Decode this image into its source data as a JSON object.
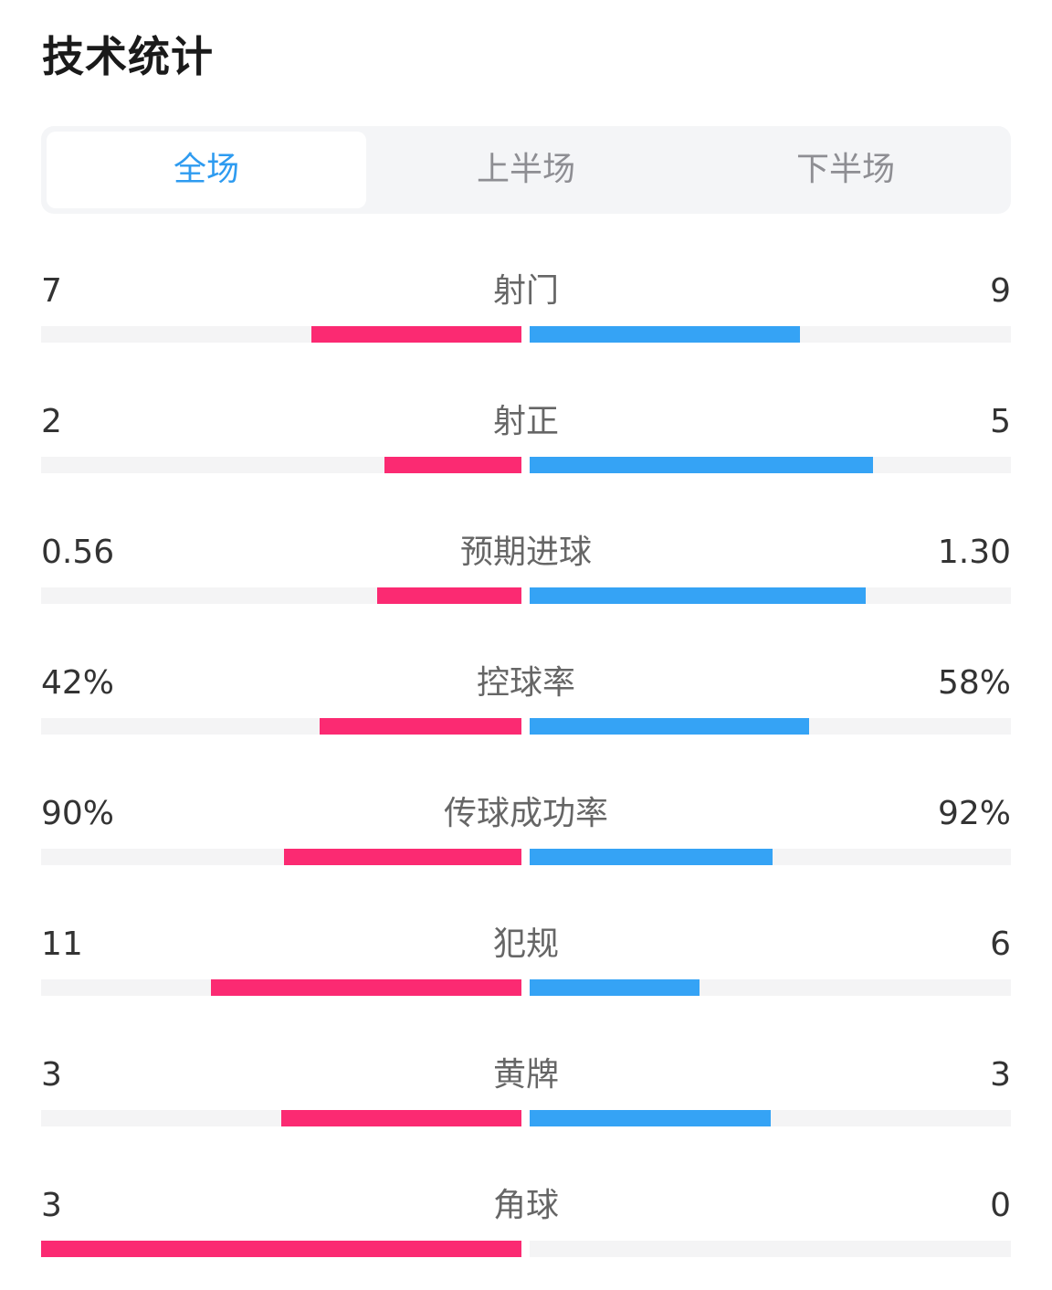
{
  "title": "技术统计",
  "tabs": [
    {
      "label": "全场",
      "active": true
    },
    {
      "label": "上半场",
      "active": false
    },
    {
      "label": "下半场",
      "active": false
    }
  ],
  "colors": {
    "home": "#fb2a72",
    "away": "#35a3f5",
    "accent": "#2e9bf0"
  },
  "stats": [
    {
      "label": "射门",
      "left": "7",
      "right": "9",
      "left_share": 0.4375,
      "right_share": 0.5625
    },
    {
      "label": "射正",
      "left": "2",
      "right": "5",
      "left_share": 0.2857,
      "right_share": 0.7143
    },
    {
      "label": "预期进球",
      "left": "0.56",
      "right": "1.30",
      "left_share": 0.3011,
      "right_share": 0.6989
    },
    {
      "label": "控球率",
      "left": "42%",
      "right": "58%",
      "left_share": 0.42,
      "right_share": 0.58
    },
    {
      "label": "传球成功率",
      "left": "90%",
      "right": "92%",
      "left_share": 0.4945,
      "right_share": 0.5055
    },
    {
      "label": "犯规",
      "left": "11",
      "right": "6",
      "left_share": 0.6471,
      "right_share": 0.3529
    },
    {
      "label": "黄牌",
      "left": "3",
      "right": "3",
      "left_share": 0.5,
      "right_share": 0.5
    },
    {
      "label": "角球",
      "left": "3",
      "right": "0",
      "left_share": 1.0,
      "right_share": 0.0
    }
  ]
}
